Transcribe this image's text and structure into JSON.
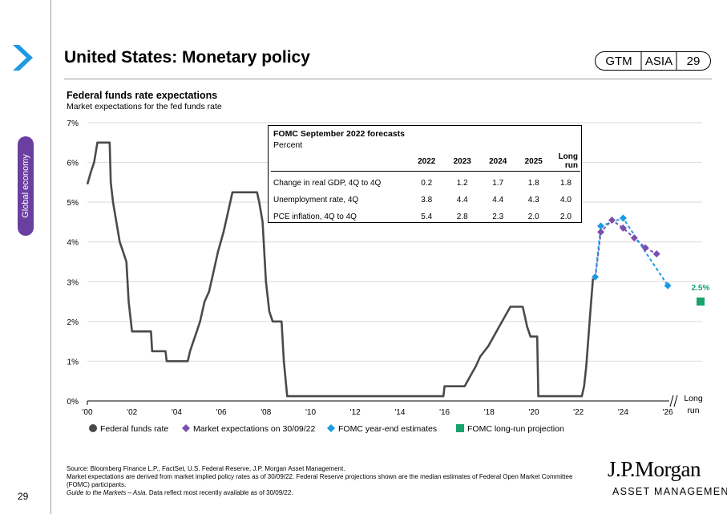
{
  "header": {
    "title": "United States: Monetary policy",
    "gtm": "GTM",
    "region": "ASIA",
    "page": "29"
  },
  "side_tab": {
    "label": "Global economy"
  },
  "page_number": "29",
  "chart_header": {
    "title": "Federal funds rate expectations",
    "subtitle": "Market expectations for the fed funds rate"
  },
  "fomc_table": {
    "title": "FOMC September 2022 forecasts",
    "subtitle": "Percent",
    "columns": [
      "2022",
      "2023",
      "2024",
      "2025",
      "Long run"
    ],
    "rows": [
      {
        "label": "Change in real GDP, 4Q to 4Q",
        "values": [
          "0.2",
          "1.2",
          "1.7",
          "1.8",
          "1.8"
        ]
      },
      {
        "label": "Unemployment rate, 4Q",
        "values": [
          "3.8",
          "4.4",
          "4.4",
          "4.3",
          "4.0"
        ]
      },
      {
        "label": "PCE inflation, 4Q to 4Q",
        "values": [
          "5.4",
          "2.8",
          "2.3",
          "2.0",
          "2.0"
        ]
      }
    ]
  },
  "chart_data": {
    "type": "line",
    "title": "Federal funds rate expectations",
    "subtitle": "Market expectations for the fed funds rate",
    "ylim": [
      0,
      7
    ],
    "xlim": [
      2000,
      2026
    ],
    "y_ticks": [
      "0%",
      "1%",
      "2%",
      "3%",
      "4%",
      "5%",
      "6%",
      "7%"
    ],
    "x_ticks": [
      "'00",
      "'02",
      "'04",
      "'06",
      "'08",
      "'10",
      "'12",
      "'14",
      "'16",
      "'18",
      "'20",
      "'22",
      "'24",
      "'26"
    ],
    "x_extra_label": "Long run",
    "grid": true,
    "legend_position": "bottom",
    "series": [
      {
        "name": "Federal funds rate",
        "color": "#4a4a4a",
        "points": [
          [
            2000.0,
            5.45
          ],
          [
            2000.15,
            5.75
          ],
          [
            2000.3,
            6.0
          ],
          [
            2000.45,
            6.5
          ],
          [
            2001.0,
            6.5
          ],
          [
            2001.05,
            5.5
          ],
          [
            2001.15,
            5.0
          ],
          [
            2001.3,
            4.5
          ],
          [
            2001.45,
            4.0
          ],
          [
            2001.6,
            3.75
          ],
          [
            2001.75,
            3.5
          ],
          [
            2001.85,
            2.5
          ],
          [
            2002.0,
            1.75
          ],
          [
            2002.85,
            1.75
          ],
          [
            2002.9,
            1.25
          ],
          [
            2003.5,
            1.25
          ],
          [
            2003.55,
            1.0
          ],
          [
            2004.5,
            1.0
          ],
          [
            2004.6,
            1.25
          ],
          [
            2004.75,
            1.5
          ],
          [
            2004.9,
            1.75
          ],
          [
            2005.05,
            2.0
          ],
          [
            2005.25,
            2.5
          ],
          [
            2005.45,
            2.75
          ],
          [
            2005.65,
            3.25
          ],
          [
            2005.85,
            3.75
          ],
          [
            2006.1,
            4.25
          ],
          [
            2006.3,
            4.75
          ],
          [
            2006.5,
            5.25
          ],
          [
            2007.6,
            5.25
          ],
          [
            2007.7,
            5.0
          ],
          [
            2007.85,
            4.5
          ],
          [
            2008.0,
            3.0
          ],
          [
            2008.15,
            2.25
          ],
          [
            2008.3,
            2.0
          ],
          [
            2008.7,
            2.0
          ],
          [
            2008.8,
            1.0
          ],
          [
            2008.95,
            0.12
          ],
          [
            2015.95,
            0.12
          ],
          [
            2016.0,
            0.37
          ],
          [
            2016.9,
            0.37
          ],
          [
            2017.15,
            0.62
          ],
          [
            2017.4,
            0.87
          ],
          [
            2017.6,
            1.12
          ],
          [
            2017.95,
            1.37
          ],
          [
            2018.2,
            1.62
          ],
          [
            2018.45,
            1.87
          ],
          [
            2018.7,
            2.12
          ],
          [
            2018.95,
            2.37
          ],
          [
            2019.5,
            2.37
          ],
          [
            2019.6,
            2.12
          ],
          [
            2019.7,
            1.87
          ],
          [
            2019.85,
            1.62
          ],
          [
            2020.15,
            1.62
          ],
          [
            2020.2,
            0.12
          ],
          [
            2022.15,
            0.12
          ],
          [
            2022.25,
            0.37
          ],
          [
            2022.35,
            0.87
          ],
          [
            2022.45,
            1.62
          ],
          [
            2022.55,
            2.37
          ],
          [
            2022.65,
            3.08
          ]
        ]
      },
      {
        "name": "Market expectations on 30/09/22",
        "color": "#7b4fb0",
        "points": [
          [
            2022.75,
            3.08
          ],
          [
            2023.0,
            4.25
          ],
          [
            2023.5,
            4.55
          ],
          [
            2024.0,
            4.35
          ],
          [
            2024.5,
            4.1
          ],
          [
            2025.0,
            3.85
          ],
          [
            2025.5,
            3.7
          ]
        ]
      },
      {
        "name": "FOMC year-end estimates",
        "color": "#1d9ae3",
        "points": [
          [
            2022.75,
            3.12
          ],
          [
            2023.0,
            4.4
          ],
          [
            2024.0,
            4.6
          ],
          [
            2026.0,
            2.9
          ]
        ]
      },
      {
        "name": "FOMC long-run projection",
        "color": "#17a36b",
        "points": [
          [
            "Long run",
            2.5
          ]
        ]
      }
    ],
    "annotations": [
      {
        "text": "2.5%",
        "color": "#17a36b"
      }
    ]
  },
  "footer": {
    "source": "Source: Bloomberg Finance L.P., FactSet, U.S. Federal Reserve, J.P. Morgan Asset Management.",
    "note": "Market expectations are derived from market implied policy rates as of 30/09/22. Federal Reserve projections shown are the median estimates of Federal Open Market Committee (FOMC) participants.",
    "guide_italic": "Guide to the Markets – Asia.",
    "guide_rest": " Data reflect most recently available as of 30/09/22."
  },
  "logo": {
    "line1": "J.P.Morgan",
    "line2": "ASSET MANAGEMENT"
  }
}
